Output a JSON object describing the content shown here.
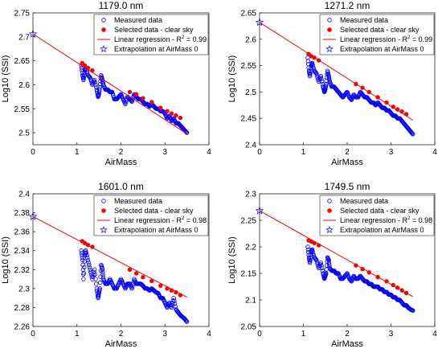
{
  "figure_layout": "2x2 grid of subplots",
  "series_colors": {
    "measured": "#0000ff",
    "selected": "#ff0000",
    "regression": "#ff0000",
    "extrapolation": "#0000ff"
  },
  "chart_data": [
    {
      "type": "scatter",
      "title": "1179.0 nm",
      "xlabel": "AirMass",
      "ylabel": "Log10 (SSI)",
      "xlim": [
        0,
        4
      ],
      "ylim": [
        2.475,
        2.75
      ],
      "xticks": [
        "0",
        "1",
        "2",
        "3",
        "4"
      ],
      "yticks": [
        "2.5",
        "2.55",
        "2.6",
        "2.65",
        "2.7",
        "2.75"
      ],
      "grid": false,
      "legend_position": "top-right",
      "legend": [
        {
          "marker": "open-circle",
          "label": "Measured data"
        },
        {
          "marker": "filled-circle",
          "label": "Selected data - clear sky"
        },
        {
          "marker": "line",
          "label_main": "Linear regression - R",
          "label_sup": "2",
          "label_tail": " = 0.99"
        },
        {
          "marker": "star",
          "label": "Extrapolation at AirMass 0"
        }
      ],
      "regression": {
        "intercept": 2.706,
        "slope": -0.0595,
        "r2": 0.99,
        "x_range": [
          0,
          3.5
        ]
      },
      "extrapolation": {
        "x": 0,
        "y": 2.706
      },
      "measured": [
        [
          1.1,
          2.64
        ],
        [
          1.13,
          2.62
        ],
        [
          1.15,
          2.61
        ],
        [
          1.18,
          2.63
        ],
        [
          1.2,
          2.635
        ],
        [
          1.25,
          2.62
        ],
        [
          1.3,
          2.615
        ],
        [
          1.35,
          2.6
        ],
        [
          1.4,
          2.61
        ],
        [
          1.45,
          2.59
        ],
        [
          1.48,
          2.575
        ],
        [
          1.5,
          2.58
        ],
        [
          1.52,
          2.595
        ],
        [
          1.55,
          2.62
        ],
        [
          1.58,
          2.61
        ],
        [
          1.6,
          2.6
        ],
        [
          1.65,
          2.59
        ],
        [
          1.7,
          2.59
        ],
        [
          1.75,
          2.585
        ],
        [
          1.8,
          2.585
        ],
        [
          1.85,
          2.57
        ],
        [
          1.9,
          2.57
        ],
        [
          1.95,
          2.575
        ],
        [
          2.0,
          2.58
        ],
        [
          2.05,
          2.57
        ],
        [
          2.1,
          2.56
        ],
        [
          2.15,
          2.575
        ],
        [
          2.2,
          2.57
        ],
        [
          2.25,
          2.565
        ],
        [
          2.3,
          2.58
        ],
        [
          2.35,
          2.575
        ],
        [
          2.4,
          2.57
        ],
        [
          2.45,
          2.57
        ],
        [
          2.5,
          2.565
        ],
        [
          2.55,
          2.56
        ],
        [
          2.6,
          2.56
        ],
        [
          2.65,
          2.555
        ],
        [
          2.7,
          2.56
        ],
        [
          2.75,
          2.555
        ],
        [
          2.8,
          2.55
        ],
        [
          2.85,
          2.55
        ],
        [
          2.9,
          2.545
        ],
        [
          2.95,
          2.545
        ],
        [
          3.0,
          2.54
        ],
        [
          3.05,
          2.53
        ],
        [
          3.1,
          2.535
        ],
        [
          3.15,
          2.525
        ],
        [
          3.2,
          2.53
        ],
        [
          3.25,
          2.52
        ],
        [
          3.3,
          2.52
        ],
        [
          3.35,
          2.515
        ],
        [
          3.4,
          2.51
        ],
        [
          3.45,
          2.505
        ],
        [
          3.5,
          2.5
        ]
      ],
      "selected": [
        [
          1.12,
          2.645
        ],
        [
          1.18,
          2.64
        ],
        [
          1.25,
          2.635
        ],
        [
          1.35,
          2.63
        ],
        [
          2.2,
          2.585
        ],
        [
          2.35,
          2.58
        ],
        [
          2.5,
          2.572
        ],
        [
          2.7,
          2.564
        ],
        [
          2.9,
          2.552
        ],
        [
          3.05,
          2.545
        ],
        [
          3.15,
          2.54
        ],
        [
          3.25,
          2.536
        ],
        [
          3.35,
          2.531
        ]
      ]
    },
    {
      "type": "scatter",
      "title": "1271.2 nm",
      "xlabel": "AirMass",
      "ylabel": "Log10 (SSI)",
      "xlim": [
        0,
        4
      ],
      "ylim": [
        2.4,
        2.65
      ],
      "xticks": [
        "0",
        "1",
        "2",
        "3",
        "4"
      ],
      "yticks": [
        "2.4",
        "2.45",
        "2.5",
        "2.55",
        "2.6",
        "2.65"
      ],
      "grid": false,
      "legend_position": "top-right",
      "legend": [
        {
          "marker": "open-circle",
          "label": "Measured data"
        },
        {
          "marker": "filled-circle",
          "label": "Selected data - clear sky"
        },
        {
          "marker": "line",
          "label_main": "Linear regression - R",
          "label_sup": "2",
          "label_tail": " = 0.99"
        },
        {
          "marker": "star",
          "label": "Extrapolation at AirMass 0"
        }
      ],
      "regression": {
        "intercept": 2.632,
        "slope": -0.053,
        "r2": 0.99,
        "x_range": [
          0,
          3.5
        ]
      },
      "extrapolation": {
        "x": 0,
        "y": 2.632
      },
      "measured": [
        [
          1.1,
          2.565
        ],
        [
          1.13,
          2.54
        ],
        [
          1.15,
          2.53
        ],
        [
          1.18,
          2.55
        ],
        [
          1.2,
          2.555
        ],
        [
          1.25,
          2.54
        ],
        [
          1.3,
          2.535
        ],
        [
          1.35,
          2.52
        ],
        [
          1.4,
          2.53
        ],
        [
          1.45,
          2.51
        ],
        [
          1.48,
          2.5
        ],
        [
          1.5,
          2.505
        ],
        [
          1.52,
          2.515
        ],
        [
          1.55,
          2.54
        ],
        [
          1.58,
          2.53
        ],
        [
          1.6,
          2.52
        ],
        [
          1.65,
          2.51
        ],
        [
          1.7,
          2.51
        ],
        [
          1.75,
          2.505
        ],
        [
          1.8,
          2.5
        ],
        [
          1.85,
          2.495
        ],
        [
          1.9,
          2.49
        ],
        [
          1.95,
          2.495
        ],
        [
          2.0,
          2.5
        ],
        [
          2.05,
          2.49
        ],
        [
          2.1,
          2.485
        ],
        [
          2.15,
          2.495
        ],
        [
          2.2,
          2.49
        ],
        [
          2.25,
          2.49
        ],
        [
          2.3,
          2.5
        ],
        [
          2.35,
          2.495
        ],
        [
          2.4,
          2.49
        ],
        [
          2.45,
          2.49
        ],
        [
          2.5,
          2.485
        ],
        [
          2.55,
          2.48
        ],
        [
          2.6,
          2.48
        ],
        [
          2.65,
          2.475
        ],
        [
          2.7,
          2.48
        ],
        [
          2.75,
          2.475
        ],
        [
          2.8,
          2.47
        ],
        [
          2.85,
          2.47
        ],
        [
          2.9,
          2.465
        ],
        [
          2.95,
          2.465
        ],
        [
          3.0,
          2.46
        ],
        [
          3.05,
          2.455
        ],
        [
          3.1,
          2.455
        ],
        [
          3.15,
          2.45
        ],
        [
          3.2,
          2.45
        ],
        [
          3.25,
          2.445
        ],
        [
          3.3,
          2.44
        ],
        [
          3.35,
          2.435
        ],
        [
          3.4,
          2.43
        ],
        [
          3.45,
          2.425
        ],
        [
          3.5,
          2.42
        ]
      ],
      "selected": [
        [
          1.12,
          2.572
        ],
        [
          1.18,
          2.568
        ],
        [
          1.25,
          2.565
        ],
        [
          1.35,
          2.56
        ],
        [
          2.2,
          2.515
        ],
        [
          2.35,
          2.508
        ],
        [
          2.5,
          2.5
        ],
        [
          2.7,
          2.49
        ],
        [
          2.9,
          2.48
        ],
        [
          3.05,
          2.472
        ],
        [
          3.15,
          2.467
        ],
        [
          3.25,
          2.463
        ],
        [
          3.35,
          2.458
        ]
      ]
    },
    {
      "type": "scatter",
      "title": "1601.0 nm",
      "xlabel": "AirMass",
      "ylabel": "Log10 (SSI)",
      "xlim": [
        0,
        4
      ],
      "ylim": [
        2.26,
        2.4
      ],
      "xticks": [
        "0",
        "1",
        "2",
        "3",
        "4"
      ],
      "yticks": [
        "2.26",
        "2.28",
        "2.3",
        "2.32",
        "2.34",
        "2.36",
        "2.38",
        "2.4"
      ],
      "grid": false,
      "legend_position": "top-right",
      "legend": [
        {
          "marker": "open-circle",
          "label": "Measured data"
        },
        {
          "marker": "filled-circle",
          "label": "Selected data - clear sky"
        },
        {
          "marker": "line",
          "label_main": "Linear regression - R",
          "label_sup": "2",
          "label_tail": " = 0.98"
        },
        {
          "marker": "star",
          "label": "Extrapolation at AirMass 0"
        }
      ],
      "regression": {
        "intercept": 2.376,
        "slope": -0.0243,
        "r2": 0.98,
        "x_range": [
          0,
          3.5
        ]
      },
      "extrapolation": {
        "x": 0,
        "y": 2.376
      },
      "measured": [
        [
          1.1,
          2.34
        ],
        [
          1.13,
          2.33
        ],
        [
          1.15,
          2.31
        ],
        [
          1.18,
          2.335
        ],
        [
          1.2,
          2.34
        ],
        [
          1.25,
          2.33
        ],
        [
          1.3,
          2.32
        ],
        [
          1.35,
          2.31
        ],
        [
          1.4,
          2.32
        ],
        [
          1.45,
          2.3
        ],
        [
          1.48,
          2.29
        ],
        [
          1.5,
          2.295
        ],
        [
          1.52,
          2.3
        ],
        [
          1.55,
          2.325
        ],
        [
          1.58,
          2.32
        ],
        [
          1.6,
          2.31
        ],
        [
          1.65,
          2.305
        ],
        [
          1.7,
          2.305
        ],
        [
          1.75,
          2.31
        ],
        [
          1.8,
          2.305
        ],
        [
          1.85,
          2.3
        ],
        [
          1.9,
          2.3
        ],
        [
          1.95,
          2.305
        ],
        [
          2.0,
          2.31
        ],
        [
          2.05,
          2.305
        ],
        [
          2.1,
          2.3
        ],
        [
          2.15,
          2.305
        ],
        [
          2.2,
          2.305
        ],
        [
          2.25,
          2.3
        ],
        [
          2.3,
          2.31
        ],
        [
          2.35,
          2.305
        ],
        [
          2.4,
          2.305
        ],
        [
          2.45,
          2.305
        ],
        [
          2.5,
          2.303
        ],
        [
          2.55,
          2.3
        ],
        [
          2.6,
          2.3
        ],
        [
          2.65,
          2.298
        ],
        [
          2.7,
          2.3
        ],
        [
          2.75,
          2.298
        ],
        [
          2.8,
          2.296
        ],
        [
          2.85,
          2.295
        ],
        [
          2.9,
          2.29
        ],
        [
          2.95,
          2.29
        ],
        [
          3.0,
          2.285
        ],
        [
          3.05,
          2.28
        ],
        [
          3.1,
          2.285
        ],
        [
          3.15,
          2.28
        ],
        [
          3.2,
          2.29
        ],
        [
          3.25,
          2.278
        ],
        [
          3.3,
          2.275
        ],
        [
          3.35,
          2.272
        ],
        [
          3.4,
          2.27
        ],
        [
          3.45,
          2.268
        ],
        [
          3.5,
          2.265
        ]
      ],
      "selected": [
        [
          1.12,
          2.35
        ],
        [
          1.18,
          2.348
        ],
        [
          1.25,
          2.346
        ],
        [
          1.35,
          2.344
        ],
        [
          2.2,
          2.32
        ],
        [
          2.35,
          2.316
        ],
        [
          2.5,
          2.312
        ],
        [
          2.7,
          2.308
        ],
        [
          2.9,
          2.303
        ],
        [
          3.05,
          2.3
        ],
        [
          3.15,
          2.298
        ],
        [
          3.25,
          2.296
        ],
        [
          3.35,
          2.293
        ]
      ]
    },
    {
      "type": "scatter",
      "title": "1749.5 nm",
      "xlabel": "AirMass",
      "ylabel": "Log10 (SSI)",
      "xlim": [
        0,
        4
      ],
      "ylim": [
        2.05,
        2.3
      ],
      "xticks": [
        "0",
        "1",
        "2",
        "3",
        "4"
      ],
      "yticks": [
        "2.05",
        "2.1",
        "2.15",
        "2.2",
        "2.25",
        "2.3"
      ],
      "grid": false,
      "legend_position": "top-right",
      "legend": [
        {
          "marker": "open-circle",
          "label": "Measured data"
        },
        {
          "marker": "filled-circle",
          "label": "Selected data - clear sky"
        },
        {
          "marker": "line",
          "label_main": "Linear regression - R",
          "label_sup": "2",
          "label_tail": " = 0.98"
        },
        {
          "marker": "star",
          "label": "Extrapolation at AirMass 0"
        }
      ],
      "regression": {
        "intercept": 2.268,
        "slope": -0.0462,
        "r2": 0.98,
        "x_range": [
          0,
          3.5
        ]
      },
      "extrapolation": {
        "x": 0,
        "y": 2.268
      },
      "measured": [
        [
          1.1,
          2.2
        ],
        [
          1.13,
          2.18
        ],
        [
          1.15,
          2.17
        ],
        [
          1.18,
          2.19
        ],
        [
          1.2,
          2.195
        ],
        [
          1.25,
          2.18
        ],
        [
          1.3,
          2.175
        ],
        [
          1.35,
          2.16
        ],
        [
          1.4,
          2.17
        ],
        [
          1.45,
          2.15
        ],
        [
          1.48,
          2.14
        ],
        [
          1.5,
          2.145
        ],
        [
          1.52,
          2.15
        ],
        [
          1.55,
          2.18
        ],
        [
          1.58,
          2.175
        ],
        [
          1.6,
          2.16
        ],
        [
          1.65,
          2.155
        ],
        [
          1.7,
          2.155
        ],
        [
          1.75,
          2.15
        ],
        [
          1.8,
          2.15
        ],
        [
          1.85,
          2.14
        ],
        [
          1.9,
          2.14
        ],
        [
          1.95,
          2.145
        ],
        [
          2.0,
          2.15
        ],
        [
          2.05,
          2.14
        ],
        [
          2.1,
          2.135
        ],
        [
          2.15,
          2.145
        ],
        [
          2.2,
          2.14
        ],
        [
          2.25,
          2.14
        ],
        [
          2.3,
          2.145
        ],
        [
          2.35,
          2.14
        ],
        [
          2.4,
          2.135
        ],
        [
          2.45,
          2.135
        ],
        [
          2.5,
          2.13
        ],
        [
          2.55,
          2.13
        ],
        [
          2.6,
          2.125
        ],
        [
          2.65,
          2.125
        ],
        [
          2.7,
          2.125
        ],
        [
          2.75,
          2.12
        ],
        [
          2.8,
          2.12
        ],
        [
          2.85,
          2.115
        ],
        [
          2.9,
          2.115
        ],
        [
          2.95,
          2.11
        ],
        [
          3.0,
          2.11
        ],
        [
          3.05,
          2.105
        ],
        [
          3.1,
          2.105
        ],
        [
          3.15,
          2.1
        ],
        [
          3.2,
          2.1
        ],
        [
          3.25,
          2.095
        ],
        [
          3.3,
          2.09
        ],
        [
          3.35,
          2.09
        ],
        [
          3.4,
          2.085
        ],
        [
          3.45,
          2.082
        ],
        [
          3.5,
          2.08
        ]
      ],
      "selected": [
        [
          1.12,
          2.212
        ],
        [
          1.18,
          2.21
        ],
        [
          1.25,
          2.207
        ],
        [
          1.35,
          2.203
        ],
        [
          2.2,
          2.165
        ],
        [
          2.35,
          2.158
        ],
        [
          2.5,
          2.152
        ],
        [
          2.7,
          2.143
        ],
        [
          2.9,
          2.135
        ],
        [
          3.05,
          2.128
        ],
        [
          3.15,
          2.123
        ],
        [
          3.25,
          2.118
        ],
        [
          3.35,
          2.113
        ]
      ]
    }
  ]
}
